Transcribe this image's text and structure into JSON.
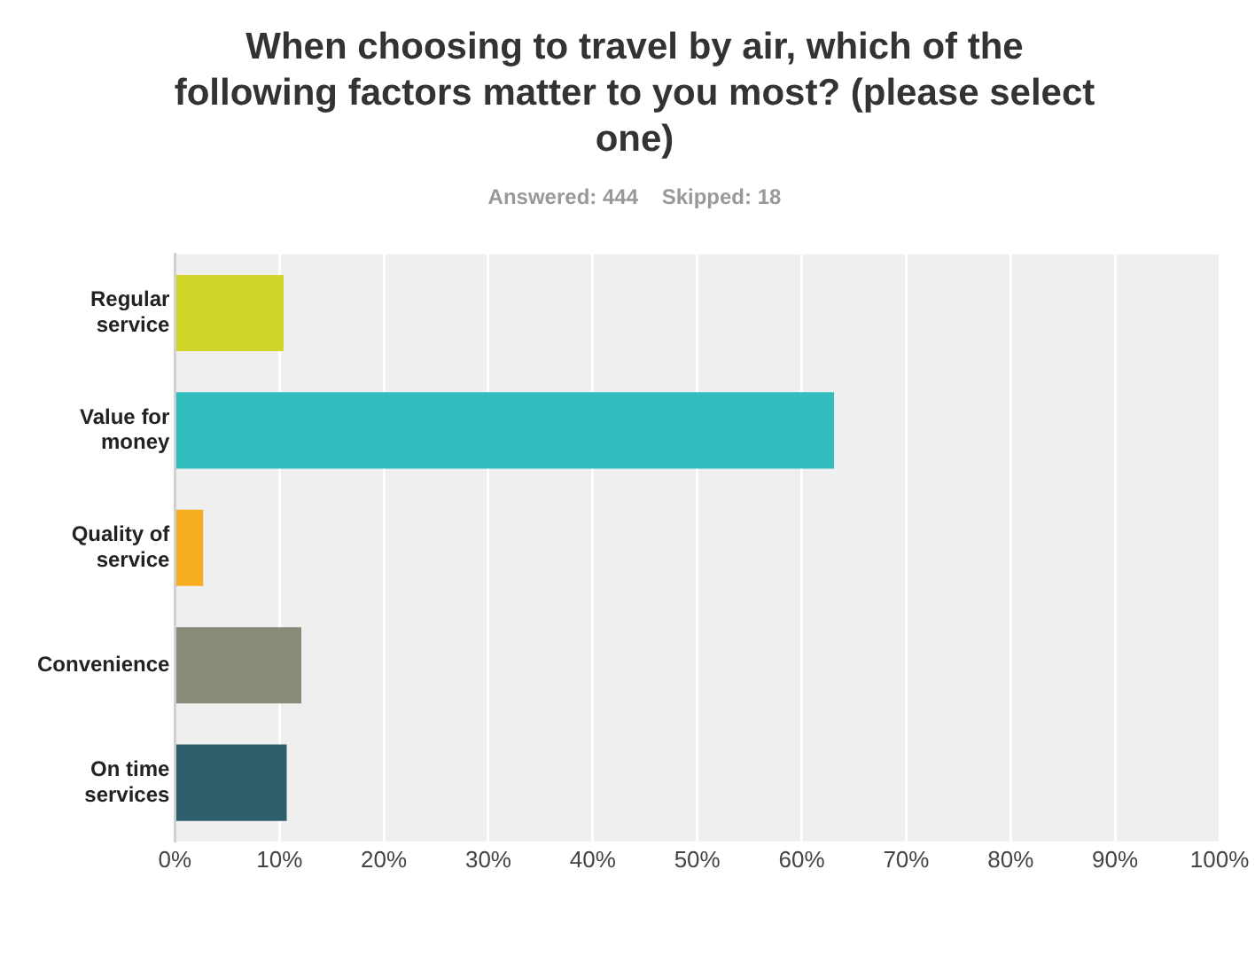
{
  "chart_data": {
    "type": "bar",
    "orientation": "horizontal",
    "title": "When choosing to travel by air, which of the following factors matter to you most? (please select one)",
    "subtitle": "Answered: 444    Skipped: 18",
    "categories": [
      "Regular service",
      "Value for money",
      "Quality of service",
      "Convenience",
      "On time services"
    ],
    "values": [
      10.4,
      63.1,
      2.7,
      12.1,
      10.7
    ],
    "colors": [
      "#d1d52a",
      "#33bdbf",
      "#f7ae20",
      "#898a78",
      "#2e5f6b"
    ],
    "xlim": [
      0,
      100
    ],
    "xticks": [
      {
        "value": 0,
        "label": "0%"
      },
      {
        "value": 10,
        "label": "10%"
      },
      {
        "value": 20,
        "label": "20%"
      },
      {
        "value": 30,
        "label": "30%"
      },
      {
        "value": 40,
        "label": "40%"
      },
      {
        "value": 50,
        "label": "50%"
      },
      {
        "value": 60,
        "label": "60%"
      },
      {
        "value": 70,
        "label": "70%"
      },
      {
        "value": 80,
        "label": "80%"
      },
      {
        "value": 90,
        "label": "90%"
      },
      {
        "value": 100,
        "label": "100%"
      }
    ],
    "grid": "x"
  }
}
